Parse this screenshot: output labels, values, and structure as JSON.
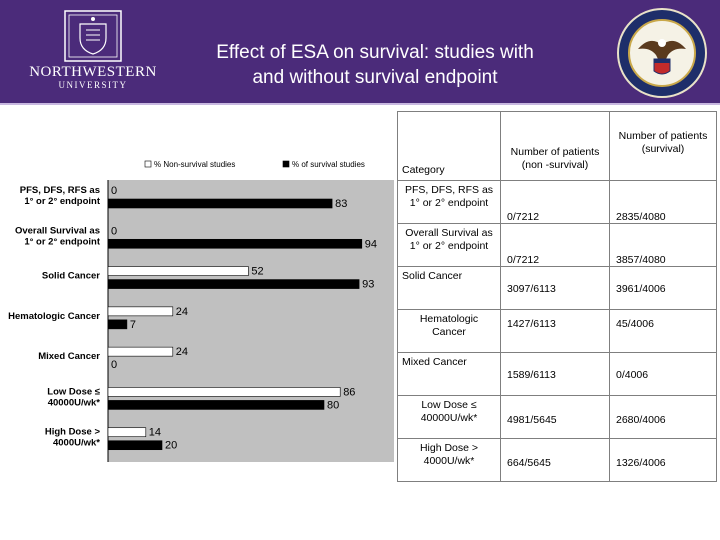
{
  "header": {
    "title_line1": "Effect of ESA on survival: studies with",
    "title_line2": "and without survival endpoint",
    "left_logo_text": "NORTHWESTERN",
    "left_logo_subtext": "UNIVERSITY",
    "bg_color": "#4b2b7a"
  },
  "chart_data": {
    "type": "bar",
    "orientation": "horizontal",
    "title": "",
    "xlabel": "",
    "ylabel": "",
    "legend_position": "top",
    "categories": [
      "PFS, DFS, RFS as 1° or 2° endpoint",
      "Overall Survival as 1° or 2° endpoint",
      "Solid Cancer",
      "Hematologic Cancer",
      "Mixed Cancer",
      "Low Dose ≤ 40000U/wk*",
      "High Dose > 4000U/wk*"
    ],
    "series": [
      {
        "name": "% Non-survival studies",
        "color": "#ffffff",
        "values": [
          0,
          0,
          52,
          24,
          24,
          86,
          14
        ]
      },
      {
        "name": "% of survival studies",
        "color": "#000000",
        "values": [
          83,
          94,
          93,
          7,
          0,
          80,
          20
        ]
      }
    ],
    "xlim": [
      0,
      100
    ],
    "background_color": "#c0c0c0"
  },
  "table": {
    "headers": [
      "Category",
      "Number of patients (non -survival)",
      "Number of patients (survival)"
    ],
    "rows": [
      {
        "category": "PFS, DFS, RFS as 1° or 2° endpoint",
        "nonsurvival": "0/7212",
        "survival": "2835/4080"
      },
      {
        "category": "Overall Survival as 1° or 2° endpoint",
        "nonsurvival": "0/7212",
        "survival": "3857/4080"
      },
      {
        "category": "Solid Cancer",
        "nonsurvival": "3097/6113",
        "survival": "3961/4006"
      },
      {
        "category": "Hematologic Cancer",
        "nonsurvival": "1427/6113",
        "survival": "45/4006"
      },
      {
        "category": "Mixed Cancer",
        "nonsurvival": "1589/6113",
        "survival": "0/4006"
      },
      {
        "category": "Low Dose ≤ 40000U/wk*",
        "nonsurvival": "4981/5645",
        "survival": "2680/4006"
      },
      {
        "category": "High Dose > 4000U/wk*",
        "nonsurvival": "664/5645",
        "survival": "1326/4006"
      }
    ]
  }
}
